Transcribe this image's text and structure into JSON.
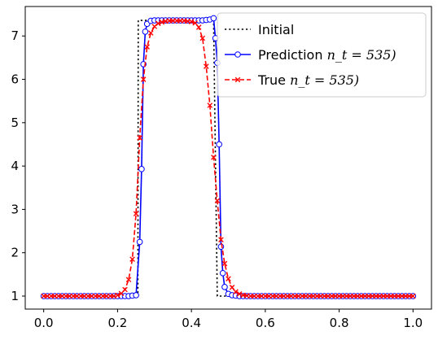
{
  "chart_data": {
    "type": "line",
    "xlim": [
      -0.05,
      1.05
    ],
    "ylim": [
      0.7,
      7.68
    ],
    "x_ticks": [
      {
        "value": 0.0,
        "label": "0.0"
      },
      {
        "value": 0.2,
        "label": "0.2"
      },
      {
        "value": 0.4,
        "label": "0.4"
      },
      {
        "value": 0.6,
        "label": "0.6"
      },
      {
        "value": 0.8,
        "label": "0.8"
      },
      {
        "value": 1.0,
        "label": "1.0"
      }
    ],
    "y_ticks": [
      {
        "value": 1,
        "label": "1"
      },
      {
        "value": 2,
        "label": "2"
      },
      {
        "value": 3,
        "label": "3"
      },
      {
        "value": 4,
        "label": "4"
      },
      {
        "value": 5,
        "label": "5"
      },
      {
        "value": 6,
        "label": "6"
      },
      {
        "value": 7,
        "label": "7"
      }
    ],
    "grid": false,
    "legend_position": "top-right",
    "series": [
      {
        "name": "Initial",
        "style": "dotted",
        "marker": "none",
        "color": "#000000",
        "x": [
          0.0,
          0.255,
          0.256,
          0.46,
          0.47,
          1.0
        ],
        "y": [
          1.0,
          1.0,
          7.36,
          7.36,
          1.0,
          1.0
        ]
      },
      {
        "name": "Prediction",
        "name_suffix": "n_t = 535)",
        "style": "solid",
        "marker": "circle",
        "color": "#0000ff",
        "x": [
          0.0,
          0.01,
          0.02,
          0.03,
          0.04,
          0.05,
          0.06,
          0.07,
          0.08,
          0.09,
          0.1,
          0.11,
          0.12,
          0.13,
          0.14,
          0.15,
          0.16,
          0.17,
          0.18,
          0.19,
          0.2,
          0.21,
          0.22,
          0.23,
          0.24,
          0.25,
          0.26,
          0.265,
          0.27,
          0.275,
          0.28,
          0.29,
          0.3,
          0.31,
          0.32,
          0.33,
          0.34,
          0.35,
          0.36,
          0.37,
          0.38,
          0.39,
          0.4,
          0.41,
          0.42,
          0.43,
          0.44,
          0.45,
          0.46,
          0.465,
          0.47,
          0.475,
          0.48,
          0.485,
          0.49,
          0.5,
          0.51,
          0.52,
          0.53,
          0.54,
          0.55,
          0.56,
          0.57,
          0.58,
          0.59,
          0.6,
          0.61,
          0.62,
          0.63,
          0.64,
          0.65,
          0.66,
          0.67,
          0.68,
          0.69,
          0.7,
          0.71,
          0.72,
          0.73,
          0.74,
          0.75,
          0.76,
          0.77,
          0.78,
          0.79,
          0.8,
          0.81,
          0.82,
          0.83,
          0.84,
          0.85,
          0.86,
          0.87,
          0.88,
          0.89,
          0.9,
          0.91,
          0.92,
          0.93,
          0.94,
          0.95,
          0.96,
          0.97,
          0.98,
          0.99,
          1.0
        ],
        "y": [
          1.0,
          1.0,
          1.0,
          1.0,
          1.0,
          1.0,
          1.0,
          1.0,
          1.0,
          1.0,
          1.0,
          1.0,
          1.0,
          1.0,
          1.0,
          1.0,
          1.0,
          1.0,
          1.0,
          1.0,
          1.0,
          1.0,
          1.0,
          1.0,
          1.01,
          1.02,
          2.25,
          3.93,
          6.35,
          7.1,
          7.28,
          7.35,
          7.36,
          7.36,
          7.36,
          7.36,
          7.36,
          7.36,
          7.36,
          7.36,
          7.36,
          7.36,
          7.36,
          7.36,
          7.36,
          7.36,
          7.37,
          7.38,
          7.41,
          6.95,
          6.38,
          4.5,
          2.14,
          1.53,
          1.21,
          1.05,
          1.02,
          1.01,
          1.0,
          1.0,
          1.0,
          1.0,
          1.0,
          1.0,
          1.0,
          1.0,
          1.0,
          1.0,
          1.0,
          1.0,
          1.0,
          1.0,
          1.0,
          1.0,
          1.0,
          1.0,
          1.0,
          1.0,
          1.0,
          1.0,
          1.0,
          1.0,
          1.0,
          1.0,
          1.0,
          1.0,
          1.0,
          1.0,
          1.0,
          1.0,
          1.0,
          1.0,
          1.0,
          1.0,
          1.0,
          1.0,
          1.0,
          1.0,
          1.0,
          1.0,
          1.0,
          1.0,
          1.0,
          1.0,
          1.0,
          1.0
        ]
      },
      {
        "name": "True",
        "name_suffix": "n_t = 535)",
        "style": "dashed",
        "marker": "x",
        "color": "#ff0000",
        "x": [
          0.0,
          0.01,
          0.02,
          0.03,
          0.04,
          0.05,
          0.06,
          0.07,
          0.08,
          0.09,
          0.1,
          0.11,
          0.12,
          0.13,
          0.14,
          0.15,
          0.16,
          0.17,
          0.18,
          0.19,
          0.2,
          0.21,
          0.22,
          0.23,
          0.24,
          0.25,
          0.26,
          0.27,
          0.28,
          0.29,
          0.3,
          0.31,
          0.32,
          0.33,
          0.34,
          0.35,
          0.36,
          0.37,
          0.38,
          0.39,
          0.4,
          0.41,
          0.42,
          0.43,
          0.44,
          0.45,
          0.46,
          0.47,
          0.48,
          0.49,
          0.5,
          0.51,
          0.52,
          0.53,
          0.54,
          0.55,
          0.56,
          0.57,
          0.58,
          0.59,
          0.6,
          0.61,
          0.62,
          0.63,
          0.64,
          0.65,
          0.66,
          0.67,
          0.68,
          0.69,
          0.7,
          0.71,
          0.72,
          0.73,
          0.74,
          0.75,
          0.76,
          0.77,
          0.78,
          0.79,
          0.8,
          0.81,
          0.82,
          0.83,
          0.84,
          0.85,
          0.86,
          0.87,
          0.88,
          0.89,
          0.9,
          0.91,
          0.92,
          0.93,
          0.94,
          0.95,
          0.96,
          0.97,
          0.98,
          0.99,
          1.0
        ],
        "y": [
          1.0,
          1.0,
          1.0,
          1.0,
          1.0,
          1.0,
          1.0,
          1.0,
          1.0,
          1.0,
          1.0,
          1.0,
          1.0,
          1.0,
          1.0,
          1.0,
          1.0,
          1.0,
          1.0,
          1.0,
          1.02,
          1.06,
          1.15,
          1.38,
          1.85,
          2.9,
          4.65,
          6.0,
          6.75,
          7.07,
          7.22,
          7.29,
          7.32,
          7.34,
          7.35,
          7.35,
          7.35,
          7.35,
          7.35,
          7.34,
          7.33,
          7.3,
          7.2,
          6.95,
          6.3,
          5.4,
          4.2,
          3.2,
          2.3,
          1.75,
          1.4,
          1.2,
          1.1,
          1.05,
          1.02,
          1.01,
          1.0,
          1.0,
          1.0,
          1.0,
          1.0,
          1.0,
          1.0,
          1.0,
          1.0,
          1.0,
          1.0,
          1.0,
          1.0,
          1.0,
          1.0,
          1.0,
          1.0,
          1.0,
          1.0,
          1.0,
          1.0,
          1.0,
          1.0,
          1.0,
          1.0,
          1.0,
          1.0,
          1.0,
          1.0,
          1.0,
          1.0,
          1.0,
          1.0,
          1.0,
          1.0,
          1.0,
          1.0,
          1.0,
          1.0,
          1.0,
          1.0,
          1.0,
          1.0,
          1.0,
          1.0
        ]
      }
    ]
  }
}
